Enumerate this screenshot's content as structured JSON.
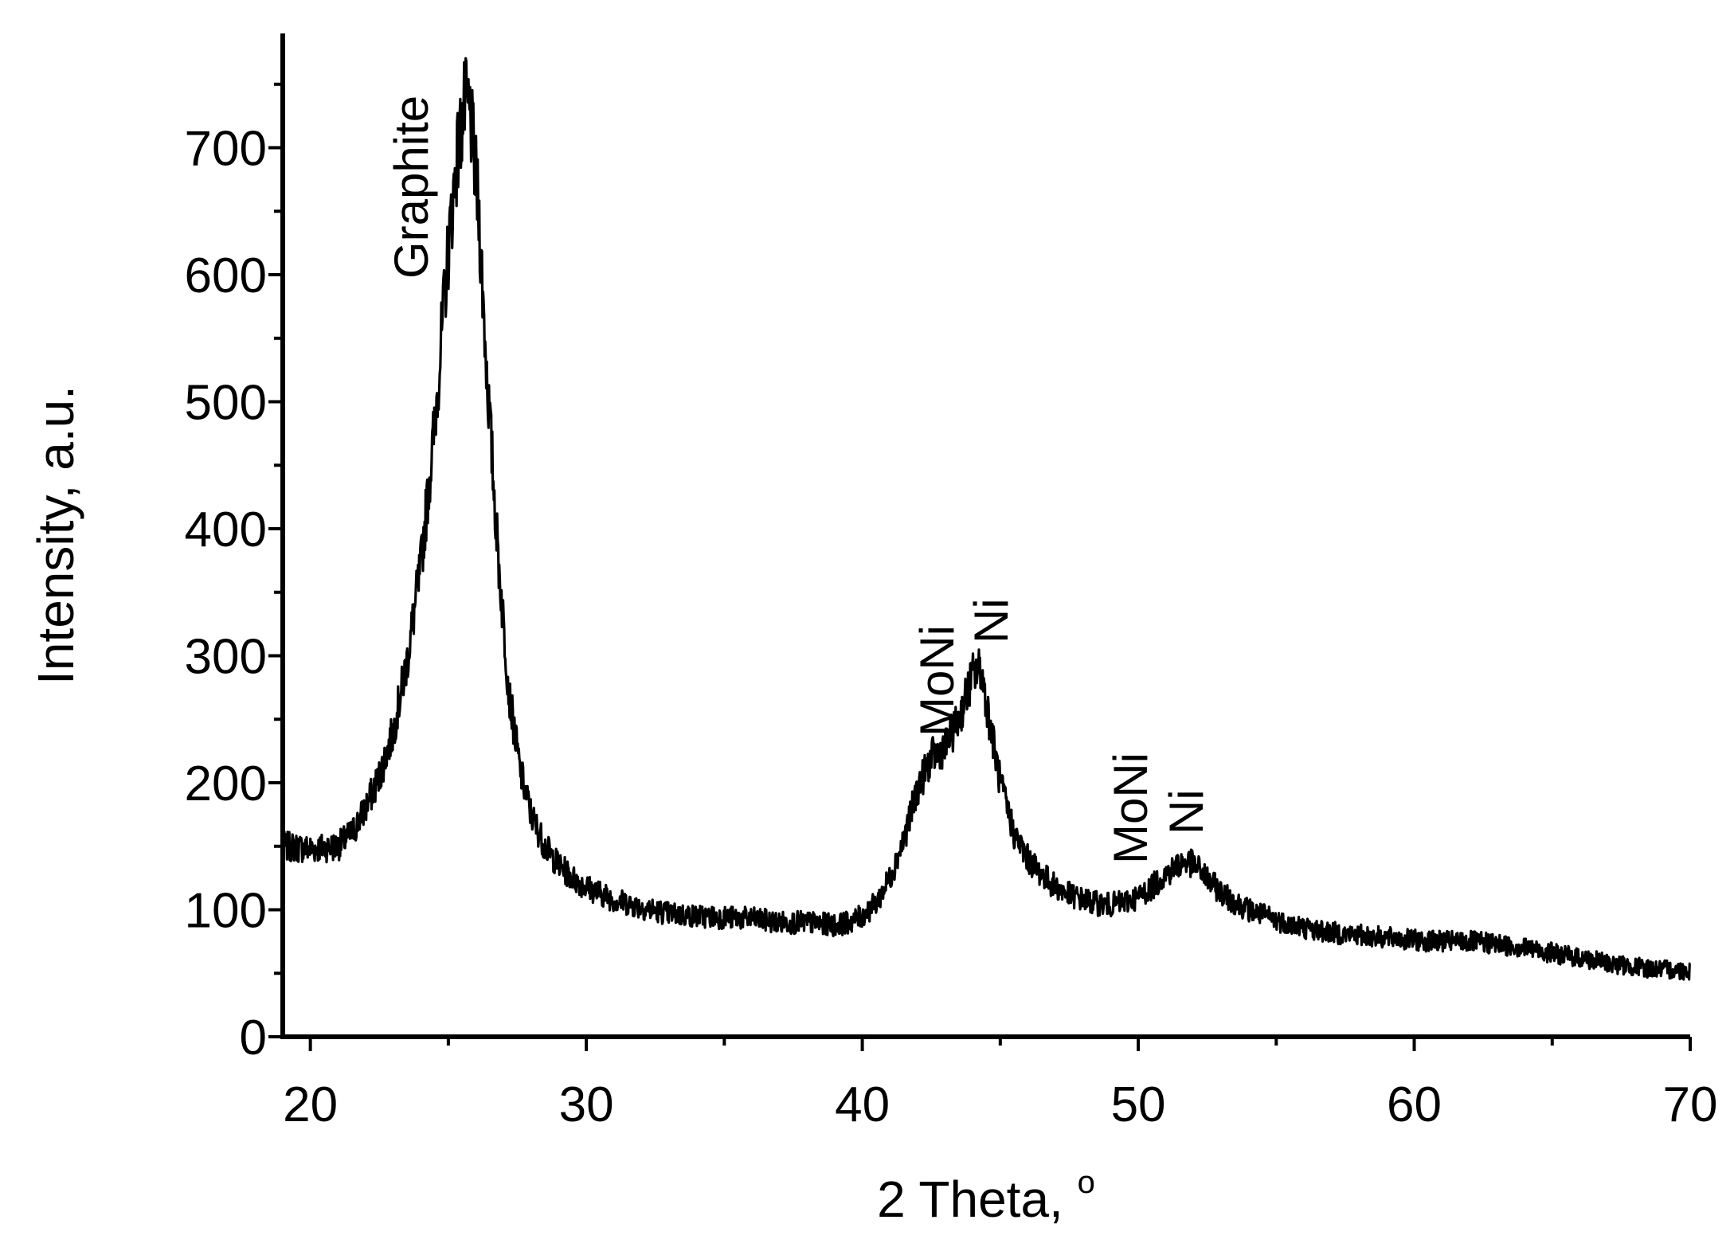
{
  "chart_data": {
    "type": "line",
    "xlabel": "2 Theta, ",
    "xlabel_degree_symbol": "o",
    "ylabel": "Intensity, a.u.",
    "xlim": [
      19,
      70
    ],
    "ylim": [
      0,
      790
    ],
    "x_ticks": [
      20,
      30,
      40,
      50,
      60,
      70
    ],
    "x_tick_labels": [
      "20",
      "30",
      "40",
      "50",
      "60",
      "70"
    ],
    "y_ticks": [
      0,
      100,
      200,
      300,
      400,
      500,
      600,
      700
    ],
    "y_tick_labels": [
      "0",
      "100",
      "200",
      "300",
      "400",
      "500",
      "600",
      "700"
    ],
    "grid": false,
    "line_color": "#000000",
    "series": [
      {
        "x": [
          19,
          20,
          21,
          21.5,
          22,
          22.5,
          23,
          23.5,
          24,
          24.5,
          25,
          25.3,
          25.6,
          25.8,
          26.1,
          26.4,
          26.8,
          27.2,
          27.6,
          28,
          28.5,
          29,
          29.5,
          30,
          31,
          32,
          33,
          34,
          35,
          36,
          37,
          38,
          39,
          39.5,
          40,
          40.5,
          41,
          41.5,
          42,
          42.5,
          43,
          43.5,
          44,
          44.3,
          44.6,
          45,
          45.5,
          46,
          46.5,
          47,
          47.5,
          48,
          48.5,
          49,
          49.5,
          50,
          50.5,
          51,
          51.5,
          51.8,
          52.2,
          52.7,
          53.2,
          54,
          55,
          56,
          57,
          58,
          59,
          60,
          61,
          62,
          63,
          64,
          65,
          66,
          67,
          68,
          69,
          70
        ],
        "y": [
          150,
          148,
          150,
          160,
          180,
          205,
          240,
          295,
          370,
          480,
          620,
          690,
          735,
          725,
          650,
          520,
          380,
          270,
          210,
          175,
          150,
          135,
          125,
          118,
          108,
          102,
          97,
          95,
          94,
          93,
          90,
          90,
          88,
          90,
          95,
          105,
          125,
          155,
          195,
          220,
          228,
          250,
          285,
          290,
          250,
          200,
          160,
          140,
          128,
          118,
          112,
          108,
          105,
          104,
          106,
          110,
          118,
          128,
          136,
          138,
          132,
          120,
          110,
          100,
          92,
          86,
          82,
          80,
          78,
          76,
          75,
          75,
          73,
          70,
          66,
          62,
          58,
          55,
          53,
          52
        ]
      }
    ],
    "annotations": [
      {
        "text": "Graphite",
        "x": 25.8
      },
      {
        "text": "MoNi",
        "x": 43.3
      },
      {
        "text": "Ni",
        "x": 44.6
      },
      {
        "text": "MoNi",
        "x": 50.2
      },
      {
        "text": "Ni",
        "x": 51.8
      }
    ]
  }
}
